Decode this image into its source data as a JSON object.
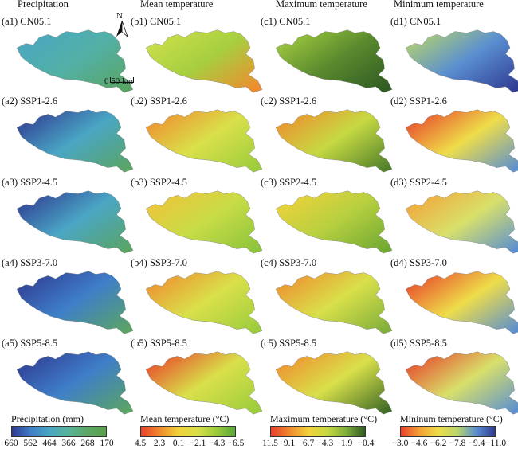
{
  "columns": [
    {
      "title": "Precipitation",
      "letter": "a",
      "panels": [
        "(a1) CN05.1",
        "(a2) SSP1-2.6",
        "(a3) SSP2-4.5",
        "(a4) SSP3-7.0",
        "(a5) SSP5-8.5"
      ],
      "colorbar_title": "Precipitation (mm)",
      "ticks": [
        "660",
        "562",
        "464",
        "366",
        "268",
        "170"
      ],
      "colors": [
        "#2f3a92",
        "#3f7fc8",
        "#4aa6c4",
        "#57b39a",
        "#5ba865",
        "#5aa04a"
      ]
    },
    {
      "title": "Mean temperature",
      "letter": "b",
      "panels": [
        "(b1) CN05.1",
        "(b2) SSP1-2.6",
        "(b3) SSP2-4.5",
        "(b4) SSP3-7.0",
        "(b5) SSP5-8.5"
      ],
      "colorbar_title": "Mean temperature (°C)",
      "ticks": [
        "4.5",
        "2.3",
        "0.1",
        "−2.1",
        "−4.3",
        "−6.5"
      ],
      "colors": [
        "#e8402a",
        "#f08a2e",
        "#f2d23a",
        "#d9e04a",
        "#9ccc3c",
        "#58a83a"
      ]
    },
    {
      "title": "Maximum temperature",
      "letter": "c",
      "panels": [
        "(c1) CN05.1",
        "(c2) SSP1-2.6",
        "(c3) SSP2-4.5",
        "(c4) SSP3-7.0",
        "(c5) SSP5-8.5"
      ],
      "colorbar_title": "Maximum temperature (°C)",
      "ticks": [
        "11.5",
        "9.1",
        "6.7",
        "4.3",
        "1.9",
        "−0.4"
      ],
      "colors": [
        "#e8402a",
        "#f08a2e",
        "#f2d23a",
        "#c6d942",
        "#7fae3a",
        "#2f5a22"
      ]
    },
    {
      "title": "Minimum temperature",
      "letter": "d",
      "panels": [
        "(d1) CN05.1",
        "(d2) SSP1-2.6",
        "(d3) SSP2-4.5",
        "(d4) SSP3-7.0",
        "(d5) SSP5-8.5"
      ],
      "colorbar_title": "Mininum temperature (°C)",
      "ticks": [
        "−3.0",
        "−4.6",
        "−6.2",
        "−7.8",
        "−9.4",
        "−11.0"
      ],
      "colors": [
        "#e8402a",
        "#f4a236",
        "#eedd4a",
        "#b9d66a",
        "#5a8fd0",
        "#2f3a92"
      ]
    }
  ],
  "map_fills": [
    [
      [
        "#4aa6c4",
        "#52b0a6",
        "#5aa463"
      ],
      [
        "#2f3a92",
        "#4aa6c4",
        "#5aa463"
      ],
      [
        "#2f3a92",
        "#4aa6c4",
        "#5aa463"
      ],
      [
        "#2f3a92",
        "#3f7fc8",
        "#5aa463"
      ],
      [
        "#2f3a92",
        "#3f7fc8",
        "#5aa463"
      ]
    ],
    [
      [
        "#cfe04a",
        "#a6cf40",
        "#f08a2e"
      ],
      [
        "#f08a2e",
        "#d9e04a",
        "#9ccc3c"
      ],
      [
        "#f2c23a",
        "#c8dc46",
        "#8cc43c"
      ],
      [
        "#f08a2e",
        "#d9e04a",
        "#9ccc3c"
      ],
      [
        "#e8402a",
        "#d9e04a",
        "#9ccc3c"
      ]
    ],
    [
      [
        "#a6cf40",
        "#5a8a2e",
        "#2f5a22"
      ],
      [
        "#f08a2e",
        "#c6d942",
        "#4f7f2a"
      ],
      [
        "#f2d23a",
        "#b8d040",
        "#6fa832"
      ],
      [
        "#f08a2e",
        "#d9e04a",
        "#7fae3a"
      ],
      [
        "#f08a2e",
        "#d9e04a",
        "#3f6a26"
      ]
    ],
    [
      [
        "#b9d66a",
        "#5a8fd0",
        "#2f3a92"
      ],
      [
        "#e8402a",
        "#eedd4a",
        "#5a8fd0"
      ],
      [
        "#f4a236",
        "#d8e06a",
        "#5a8fd0"
      ],
      [
        "#e8402a",
        "#eedd4a",
        "#5a8fd0"
      ],
      [
        "#e8402a",
        "#d8e06a",
        "#5a8fd0"
      ]
    ]
  ],
  "north_label": "N",
  "scale_label": "0    50 km"
}
